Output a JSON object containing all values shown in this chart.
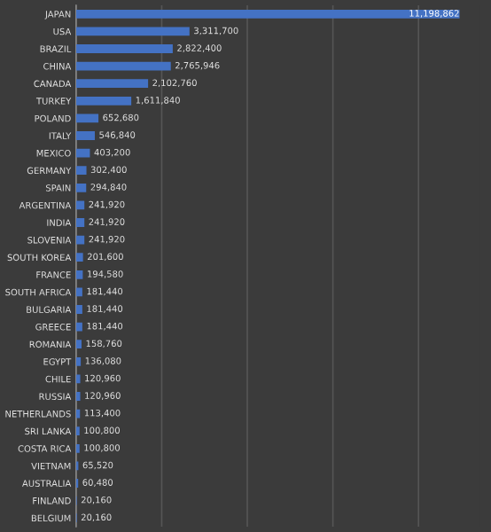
{
  "chart_data": {
    "type": "bar",
    "orientation": "horizontal",
    "categories": [
      "JAPAN",
      "USA",
      "BRAZIL",
      "CHINA",
      "CANADA",
      "TURKEY",
      "POLAND",
      "ITALY",
      "MEXICO",
      "GERMANY",
      "SPAIN",
      "ARGENTINA",
      "INDIA",
      "SLOVENIA",
      "SOUTH KOREA",
      "FRANCE",
      "SOUTH AFRICA",
      "BULGARIA",
      "GREECE",
      "ROMANIA",
      "EGYPT",
      "CHILE",
      "RUSSIA",
      "NETHERLANDS",
      "SRI LANKA",
      "COSTA RICA",
      "VIETNAM",
      "AUSTRALIA",
      "FINLAND",
      "BELGIUM"
    ],
    "values": [
      11198862,
      3311700,
      2822400,
      2765946,
      2102760,
      1611840,
      652680,
      546840,
      403200,
      302400,
      294840,
      241920,
      241920,
      241920,
      201600,
      194580,
      181440,
      181440,
      181440,
      158760,
      136080,
      120960,
      120960,
      113400,
      100800,
      100800,
      65520,
      60480,
      20160,
      20160
    ],
    "color": "#4472c4",
    "value_labels": [
      "11,198,862",
      "3,311,700",
      "2,822,400",
      "2,765,946",
      "2,102,760",
      "1,611,840",
      "652,680",
      "546,840",
      "403,200",
      "302,400",
      "294,840",
      "241,920",
      "241,920",
      "241,920",
      "201,600",
      "194,580",
      "181,440",
      "181,440",
      "181,440",
      "158,760",
      "136,080",
      "120,960",
      "120,960",
      "113,400",
      "100,800",
      "100,800",
      "65,520",
      "60,480",
      "20,160",
      "20,160"
    ],
    "tick_labels": "y",
    "grid": "x",
    "legend": false
  }
}
